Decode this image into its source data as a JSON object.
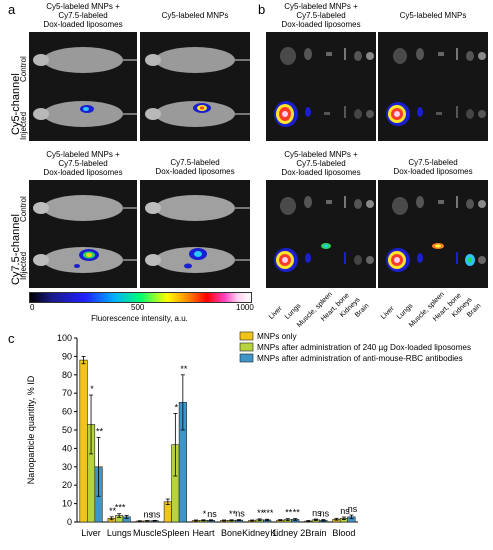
{
  "panels": {
    "a": "a",
    "b": "b",
    "c": "c"
  },
  "panel_a": {
    "caption_top_left": "Cy5-labeled MNPs +\nCy7.5-labeled\nDox-loaded liposomes",
    "caption_top_right": "Cy5-labeled MNPs",
    "caption_bottom_left": "Cy5-labeled MNPs +\nCy7.5-labeled\nDox-loaded liposomes",
    "caption_bottom_right": "Cy7.5-labeled\nDox-loaded liposomes",
    "channel_top": "Cy5-channel",
    "channel_bottom": "Cy7.5-channel",
    "row_control": "Control",
    "row_injected": "Injected"
  },
  "panel_b": {
    "caption_top_left": "Cy5-labeled MNPs +\nCy7.5-labeled\nDox-loaded liposomes",
    "caption_top_right": "Cy5-labeled MNPs",
    "caption_bottom_left": "Cy5-labeled MNPs +\nCy7.5-labeled\nDox-loaded liposomes",
    "caption_bottom_right": "Cy7.5-labeled\nDox-loaded liposomes",
    "organ_labels": [
      "Liver",
      "Lungs",
      "Muscle, spleen",
      "Heart, bone",
      "Kidneys",
      "Brain"
    ]
  },
  "colorbar": {
    "min_label": "0",
    "mid_label": "500",
    "max_label": "1000",
    "label": "Fluorescence intensity, a.u."
  },
  "colors": {
    "mnps_only": "#f2c31b",
    "after_liposomes": "#b7d43f",
    "after_antibodies": "#3f95c6"
  },
  "chart_data": {
    "type": "bar",
    "ylabel": "Nanoparticle quantity, % ID",
    "ylim": [
      0,
      100
    ],
    "yticks": [
      "0",
      "10",
      "20",
      "30",
      "40",
      "50",
      "60",
      "70",
      "80",
      "90",
      "100"
    ],
    "categories": [
      "Liver",
      "Lungs",
      "Muscle",
      "Spleen",
      "Heart",
      "Bone",
      "Kidney 1",
      "Kidney 2",
      "Brain",
      "Blood"
    ],
    "series": [
      {
        "name": "MNPs only",
        "values": [
          88,
          2,
          0.5,
          11,
          0.8,
          0.8,
          0.8,
          1,
          0.5,
          1.5
        ],
        "errors": [
          2,
          0.8,
          0.2,
          1.5,
          0.3,
          0.3,
          0.3,
          0.3,
          0.3,
          0.5
        ]
      },
      {
        "name": "MNPs after administration of 240 µg Dox-loaded liposomes",
        "values": [
          53,
          3.5,
          0.6,
          42,
          0.9,
          0.9,
          1.2,
          1.3,
          1.2,
          2
        ],
        "errors": [
          16,
          1,
          0.2,
          17,
          0.3,
          0.3,
          0.5,
          0.5,
          0.4,
          0.7
        ]
      },
      {
        "name": "MNPs after administration of anti-mouse-RBC antibodies",
        "values": [
          30,
          2.8,
          0.7,
          65,
          0.9,
          1,
          1.1,
          1.4,
          0.9,
          2.8
        ],
        "errors": [
          16,
          0.8,
          0.2,
          15,
          0.3,
          0.3,
          0.4,
          0.5,
          0.4,
          1
        ]
      }
    ],
    "significance": [
      [
        "",
        "*",
        "**"
      ],
      [
        "**",
        "***",
        ""
      ],
      [
        "",
        "ns",
        "ns"
      ],
      [
        "",
        "*",
        "**"
      ],
      [
        "",
        "*",
        "ns"
      ],
      [
        "",
        "**",
        "ns"
      ],
      [
        "",
        "**",
        "***"
      ],
      [
        "",
        "**",
        "**"
      ],
      [
        "",
        "ns",
        "ns"
      ],
      [
        "",
        "ns",
        "ns"
      ]
    ]
  }
}
